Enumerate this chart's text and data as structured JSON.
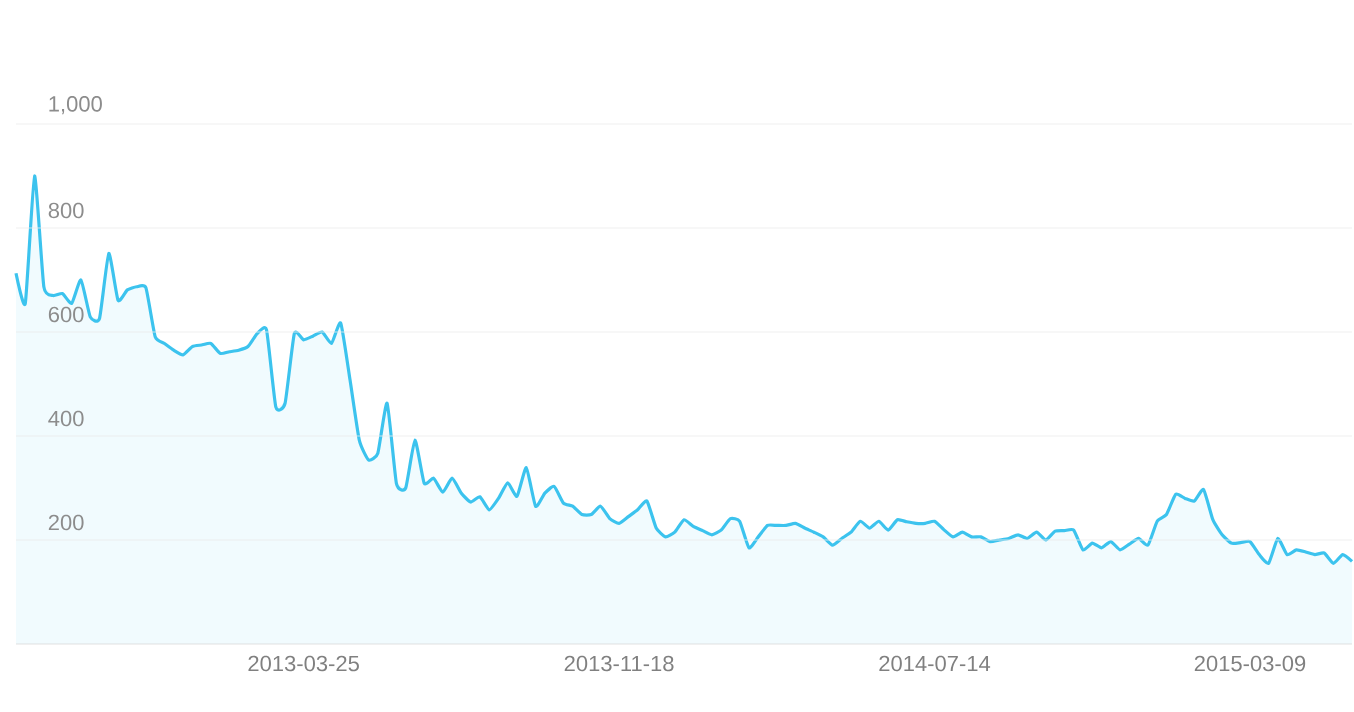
{
  "chart_data": {
    "type": "area",
    "x": [
      "2012-08-20",
      "2012-08-27",
      "2012-09-03",
      "2012-09-10",
      "2012-09-17",
      "2012-09-24",
      "2012-10-01",
      "2012-10-08",
      "2012-10-15",
      "2012-10-22",
      "2012-10-29",
      "2012-11-05",
      "2012-11-12",
      "2012-11-19",
      "2012-11-26",
      "2012-12-03",
      "2012-12-10",
      "2012-12-17",
      "2012-12-24",
      "2012-12-31",
      "2013-01-07",
      "2013-01-14",
      "2013-01-21",
      "2013-01-28",
      "2013-02-04",
      "2013-02-11",
      "2013-02-18",
      "2013-02-25",
      "2013-03-04",
      "2013-03-11",
      "2013-03-18",
      "2013-03-25",
      "2013-04-01",
      "2013-04-08",
      "2013-04-15",
      "2013-04-22",
      "2013-04-29",
      "2013-05-06",
      "2013-05-13",
      "2013-05-20",
      "2013-05-27",
      "2013-06-03",
      "2013-06-10",
      "2013-06-17",
      "2013-06-24",
      "2013-07-01",
      "2013-07-08",
      "2013-07-15",
      "2013-07-22",
      "2013-07-29",
      "2013-08-05",
      "2013-08-12",
      "2013-08-19",
      "2013-08-26",
      "2013-09-02",
      "2013-09-09",
      "2013-09-16",
      "2013-09-23",
      "2013-09-30",
      "2013-10-07",
      "2013-10-14",
      "2013-10-21",
      "2013-10-28",
      "2013-11-04",
      "2013-11-11",
      "2013-11-18",
      "2013-11-25",
      "2013-12-02",
      "2013-12-09",
      "2013-12-16",
      "2013-12-23",
      "2013-12-30",
      "2014-01-06",
      "2014-01-13",
      "2014-01-20",
      "2014-01-27",
      "2014-02-03",
      "2014-02-10",
      "2014-02-17",
      "2014-02-24",
      "2014-03-03",
      "2014-03-10",
      "2014-03-17",
      "2014-03-24",
      "2014-03-31",
      "2014-04-07",
      "2014-04-14",
      "2014-04-21",
      "2014-04-28",
      "2014-05-05",
      "2014-05-12",
      "2014-05-19",
      "2014-05-26",
      "2014-06-02",
      "2014-06-09",
      "2014-06-16",
      "2014-06-23",
      "2014-06-30",
      "2014-07-07",
      "2014-07-14",
      "2014-07-21",
      "2014-07-28",
      "2014-08-04",
      "2014-08-11",
      "2014-08-18",
      "2014-08-25",
      "2014-09-01",
      "2014-09-08",
      "2014-09-15",
      "2014-09-22",
      "2014-09-29",
      "2014-10-06",
      "2014-10-13",
      "2014-10-20",
      "2014-10-27",
      "2014-11-03",
      "2014-11-10",
      "2014-11-17",
      "2014-11-24",
      "2014-12-01",
      "2014-12-08",
      "2014-12-15",
      "2014-12-22",
      "2014-12-29",
      "2015-01-05",
      "2015-01-12",
      "2015-01-19",
      "2015-01-26",
      "2015-02-02",
      "2015-02-09",
      "2015-02-16",
      "2015-02-23",
      "2015-03-02",
      "2015-03-09",
      "2015-03-16",
      "2015-03-23",
      "2015-03-30",
      "2015-04-06",
      "2015-04-13",
      "2015-04-20",
      "2015-04-27",
      "2015-05-04",
      "2015-05-11",
      "2015-05-18",
      "2015-05-25"
    ],
    "series": [
      {
        "color": "#3cc3ee",
        "values": [
          713,
          655,
          900,
          687,
          670,
          674,
          655,
          700,
          629,
          626,
          751,
          661,
          681,
          687,
          685,
          591,
          578,
          565,
          556,
          572,
          575,
          578,
          559,
          562,
          565,
          572,
          597,
          604,
          456,
          463,
          597,
          585,
          592,
          600,
          578,
          617,
          508,
          392,
          354,
          367,
          463,
          309,
          300,
          392,
          309,
          319,
          292,
          319,
          290,
          273,
          283,
          258,
          280,
          310,
          284,
          339,
          265,
          290,
          303,
          271,
          265,
          249,
          249,
          265,
          241,
          232,
          245,
          258,
          275,
          223,
          206,
          215,
          239,
          226,
          218,
          210,
          219,
          241,
          236,
          185,
          206,
          228,
          228,
          228,
          232,
          223,
          215,
          206,
          190,
          203,
          215,
          236,
          223,
          236,
          219,
          239,
          235,
          232,
          232,
          236,
          220,
          206,
          215,
          206,
          206,
          197,
          200,
          203,
          210,
          203,
          215,
          200,
          217,
          218,
          219,
          181,
          194,
          185,
          197,
          181,
          192,
          203,
          190,
          236,
          249,
          288,
          280,
          275,
          297,
          239,
          210,
          194,
          195,
          197,
          172,
          155,
          203,
          172,
          181,
          177,
          172,
          175,
          155,
          172,
          159
        ]
      }
    ],
    "xlim": [
      "2012-08-20",
      "2015-05-25"
    ],
    "xticks": [
      "2013-03-25",
      "2013-11-18",
      "2014-07-14",
      "2015-03-09"
    ],
    "ylim": [
      0,
      1000
    ],
    "yticks": [
      200,
      400,
      600,
      800,
      {
        "value": 1000,
        "label": "1,000"
      }
    ],
    "grid": "y"
  }
}
